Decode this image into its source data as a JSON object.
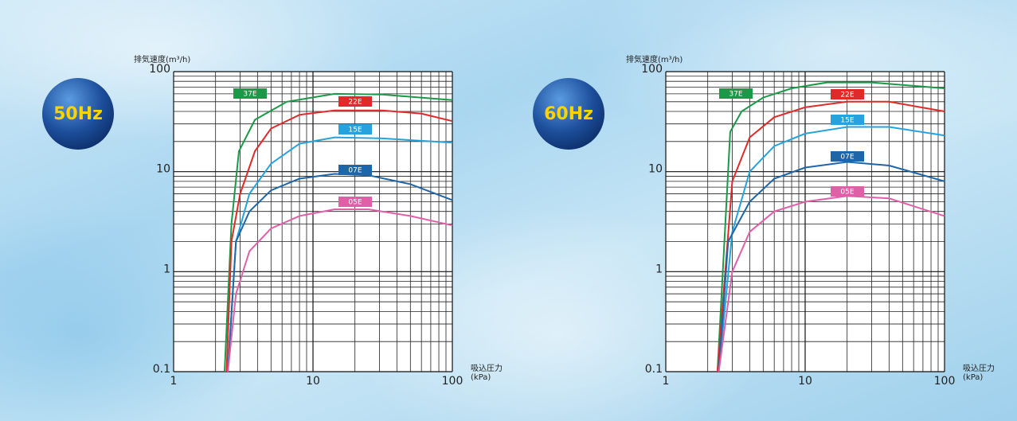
{
  "chart_data": [
    {
      "type": "line",
      "title": "50Hz",
      "y_label": "排気速度(m³/h)",
      "x_label": [
        "吸込圧力",
        "(kPa)"
      ],
      "xlog": true,
      "ylog": true,
      "xlim": [
        1,
        100
      ],
      "ylim": [
        0.1,
        100
      ],
      "xticks": [
        1,
        10,
        100
      ],
      "yticks": [
        0.1,
        1,
        10,
        100
      ],
      "grid": true,
      "series": [
        {
          "name": "37E",
          "color": "#1a9a48",
          "x": [
            2.32,
            2.6,
            2.94,
            3.83,
            6.5,
            14.3,
            31.4,
            100
          ],
          "values": [
            0.1,
            3,
            16,
            33,
            50,
            60,
            59,
            52
          ]
        },
        {
          "name": "22E",
          "color": "#e02a2a",
          "x": [
            2.4,
            2.6,
            3.0,
            3.83,
            5,
            8,
            14.3,
            31.4,
            60,
            100
          ],
          "values": [
            0.1,
            2,
            6,
            16,
            27,
            37,
            41,
            41,
            38,
            32
          ]
        },
        {
          "name": "15E",
          "color": "#26a3dd",
          "x": [
            2.45,
            2.8,
            3.5,
            5,
            8,
            14.3,
            31.4,
            100
          ],
          "values": [
            0.1,
            2,
            6,
            12,
            19,
            22,
            21.5,
            19.5
          ]
        },
        {
          "name": "07E",
          "color": "#1f66a8",
          "x": [
            2.45,
            2.8,
            3.5,
            5,
            8,
            14.3,
            25,
            50,
            100
          ],
          "values": [
            0.1,
            2,
            4,
            6.5,
            8.5,
            9.5,
            9.2,
            7.5,
            5.2
          ]
        },
        {
          "name": "05E",
          "color": "#e060a8",
          "x": [
            2.45,
            2.8,
            3.5,
            5,
            8,
            14.3,
            25,
            50,
            100
          ],
          "values": [
            0.1,
            0.6,
            1.6,
            2.7,
            3.6,
            4.2,
            4.2,
            3.6,
            2.9
          ]
        }
      ]
    },
    {
      "type": "line",
      "title": "60Hz",
      "y_label": "排気速度(m³/h)",
      "x_label": [
        "吸込圧力",
        "(kPa)"
      ],
      "xlog": true,
      "ylog": true,
      "xlim": [
        1,
        100
      ],
      "ylim": [
        0.1,
        100
      ],
      "xticks": [
        1,
        10,
        100
      ],
      "yticks": [
        0.1,
        1,
        10,
        100
      ],
      "grid": true,
      "series": [
        {
          "name": "37E",
          "color": "#1a9a48",
          "x": [
            2.35,
            2.9,
            3.5,
            5,
            8,
            14.3,
            30,
            100
          ],
          "values": [
            0.1,
            25,
            40,
            55,
            68,
            78,
            78,
            68
          ]
        },
        {
          "name": "22E",
          "color": "#e02a2a",
          "x": [
            2.35,
            3,
            4,
            6,
            10,
            20,
            40,
            100
          ],
          "values": [
            0.1,
            8,
            22,
            35,
            44,
            50,
            50,
            40
          ]
        },
        {
          "name": "15E",
          "color": "#26a3dd",
          "x": [
            2.4,
            3,
            4,
            6,
            10,
            20,
            40,
            100
          ],
          "values": [
            0.1,
            2.5,
            10,
            18,
            24,
            28,
            28,
            23
          ]
        },
        {
          "name": "07E",
          "color": "#1f66a8",
          "x": [
            2.4,
            2.8,
            4,
            6,
            10,
            20,
            40,
            100
          ],
          "values": [
            0.1,
            2,
            5,
            8.5,
            11,
            12.5,
            11.5,
            8
          ]
        },
        {
          "name": "05E",
          "color": "#e060a8",
          "x": [
            2.4,
            3,
            4,
            6,
            10,
            20,
            40,
            100
          ],
          "values": [
            0.1,
            1,
            2.5,
            4,
            5,
            5.7,
            5.4,
            3.6
          ]
        }
      ]
    }
  ]
}
